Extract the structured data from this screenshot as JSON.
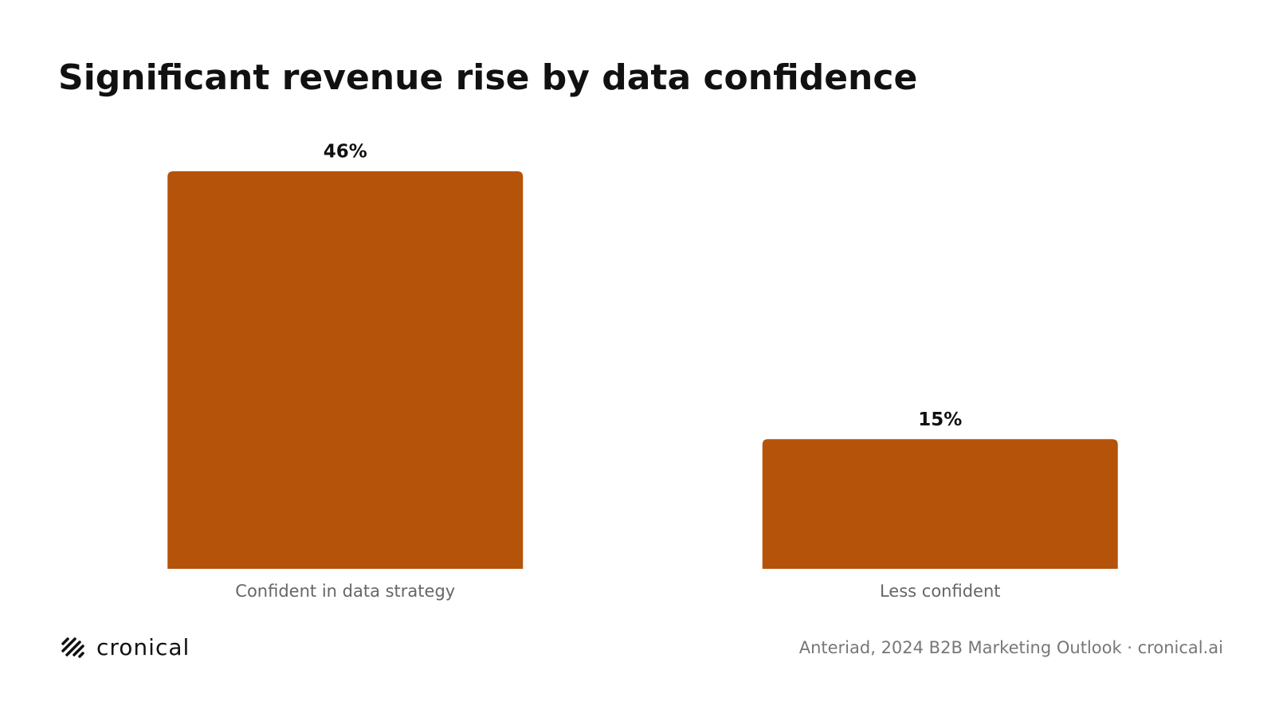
{
  "chart_data": {
    "type": "bar",
    "title": "Significant revenue rise by data confidence",
    "categories": [
      "Confident in data strategy",
      "Less confident"
    ],
    "values": [
      46,
      15
    ],
    "value_labels": [
      "46%",
      "15%"
    ],
    "color": "#b5530b",
    "brand": "cronical",
    "source": "Anteriad, 2024 B2B Marketing Outlook · cronical.ai"
  }
}
